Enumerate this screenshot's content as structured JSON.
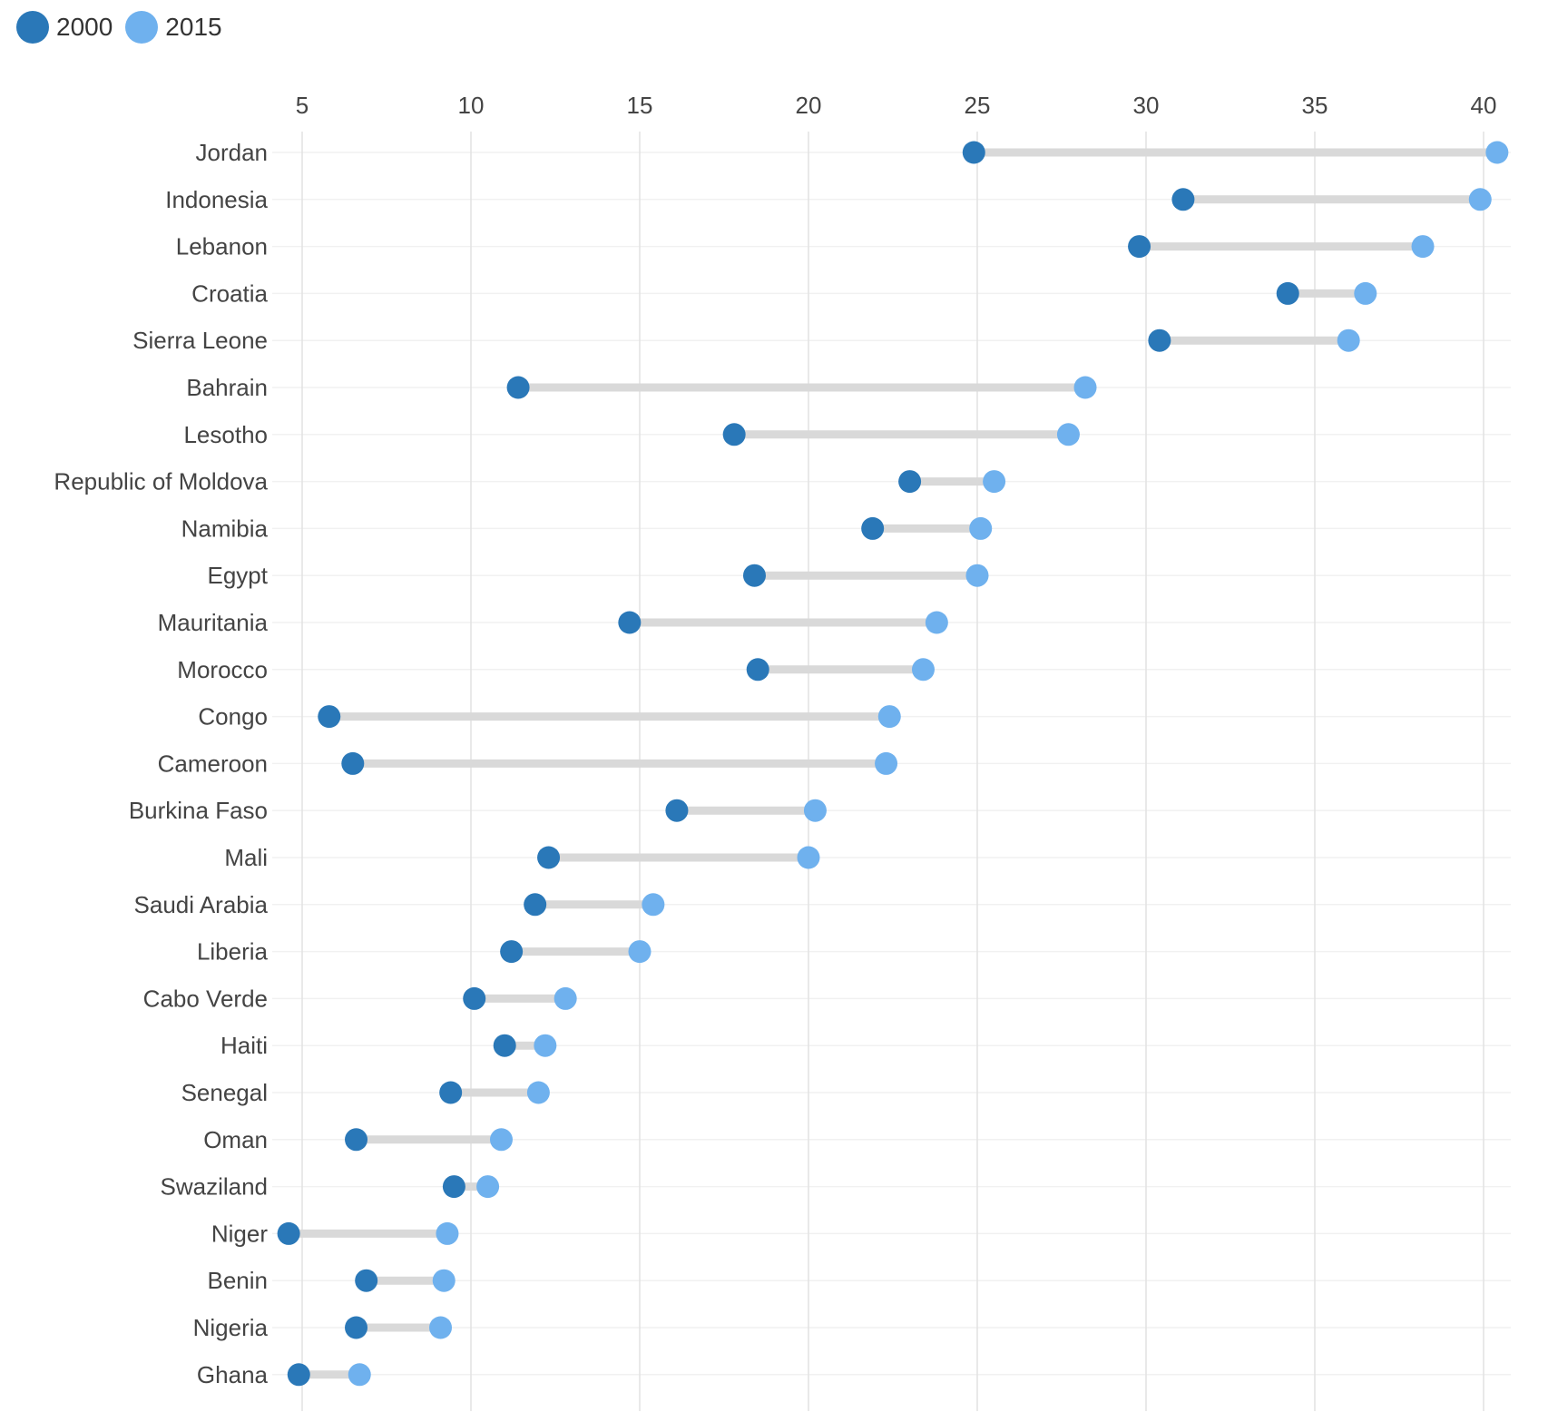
{
  "legend": {
    "series_2000": "2000",
    "series_2015": "2015"
  },
  "colors": {
    "dark": "#2a78b8",
    "light": "#6fb1ee",
    "connector": "#d9d9d9",
    "grid": "#e2e2e2"
  },
  "chart_data": {
    "type": "dumbbell",
    "xlim": [
      5,
      40
    ],
    "xticks": [
      5,
      10,
      15,
      20,
      25,
      30,
      35,
      40
    ],
    "grid": true,
    "legend_position": "top-left",
    "series": [
      {
        "name": "2000",
        "color": "#2a78b8"
      },
      {
        "name": "2015",
        "color": "#6fb1ee"
      }
    ],
    "categories": [
      "Jordan",
      "Indonesia",
      "Lebanon",
      "Croatia",
      "Sierra Leone",
      "Bahrain",
      "Lesotho",
      "Republic of Moldova",
      "Namibia",
      "Egypt",
      "Mauritania",
      "Morocco",
      "Congo",
      "Cameroon",
      "Burkina Faso",
      "Mali",
      "Saudi Arabia",
      "Liberia",
      "Cabo Verde",
      "Haiti",
      "Senegal",
      "Oman",
      "Swaziland",
      "Niger",
      "Benin",
      "Nigeria",
      "Ghana"
    ],
    "values_2000": [
      24.9,
      31.1,
      29.8,
      34.2,
      30.4,
      11.4,
      17.8,
      23.0,
      21.9,
      18.4,
      14.7,
      18.5,
      5.8,
      6.5,
      16.1,
      12.3,
      11.9,
      11.2,
      10.1,
      11.0,
      9.4,
      6.6,
      9.5,
      4.6,
      6.9,
      6.6,
      4.9
    ],
    "values_2015": [
      40.4,
      39.9,
      38.2,
      36.5,
      36.0,
      28.2,
      27.7,
      25.5,
      25.1,
      25.0,
      23.8,
      23.4,
      22.4,
      22.3,
      20.2,
      20.0,
      15.4,
      15.0,
      12.8,
      12.2,
      12.0,
      10.9,
      10.5,
      9.3,
      9.2,
      9.1,
      6.7
    ]
  }
}
